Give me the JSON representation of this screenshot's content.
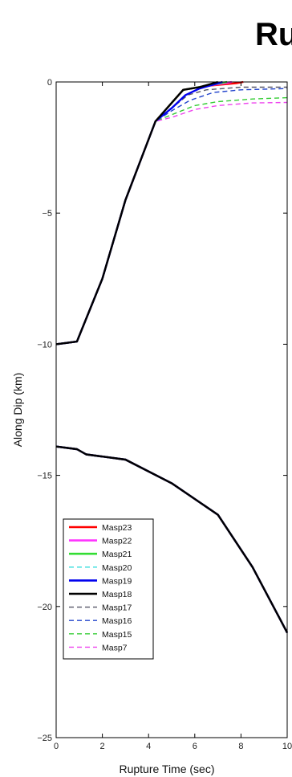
{
  "chart_data": {
    "type": "line",
    "title": "Ru",
    "xlabel": "Rupture Time (sec)",
    "ylabel": "Along Dip (km)",
    "xlim": [
      0,
      10
    ],
    "ylim": [
      -25,
      0
    ],
    "xticks": [
      0,
      2,
      4,
      6,
      8,
      10
    ],
    "xtick_labels": [
      "0",
      "2",
      "4",
      "6",
      "8",
      "10"
    ],
    "yticks": [
      0,
      -5,
      -10,
      -15,
      -20,
      -25
    ],
    "ytick_labels": [
      "0",
      "−5",
      "−10",
      "−15",
      "−20",
      "−25"
    ],
    "grid": false,
    "legend_position": "bottom-left",
    "series": [
      {
        "name": "Masp23",
        "color": "#ff0000",
        "style": "solid",
        "upper": [
          [
            0,
            -10
          ],
          [
            0.9,
            -9.9
          ],
          [
            2,
            -7.5
          ],
          [
            3,
            -4.5
          ],
          [
            4.3,
            -1.5
          ],
          [
            5,
            -0.8
          ],
          [
            5.5,
            -0.3
          ],
          [
            6.5,
            -0.15
          ],
          [
            7.8,
            -0.05
          ],
          [
            8.1,
            0
          ]
        ],
        "lower": [
          [
            0,
            -13.9
          ],
          [
            0.9,
            -14
          ],
          [
            1.3,
            -14.2
          ],
          [
            3,
            -14.4
          ],
          [
            5,
            -15.3
          ],
          [
            7,
            -16.5
          ],
          [
            8.5,
            -18.5
          ],
          [
            9.7,
            -20.5
          ],
          [
            10,
            -21
          ]
        ]
      },
      {
        "name": "Masp22",
        "color": "#ff33ff",
        "style": "solid",
        "upper": [
          [
            0,
            -10
          ],
          [
            0.9,
            -9.9
          ],
          [
            2,
            -7.5
          ],
          [
            3,
            -4.5
          ],
          [
            4.3,
            -1.5
          ],
          [
            5,
            -0.8
          ],
          [
            5.5,
            -0.3
          ],
          [
            6.5,
            -0.15
          ],
          [
            7.3,
            -0.05
          ],
          [
            7.6,
            0
          ]
        ],
        "lower": [
          [
            0,
            -13.9
          ],
          [
            0.9,
            -14
          ],
          [
            1.3,
            -14.2
          ],
          [
            3,
            -14.4
          ],
          [
            5,
            -15.3
          ],
          [
            7,
            -16.5
          ],
          [
            8.5,
            -18.5
          ],
          [
            9.7,
            -20.5
          ],
          [
            10,
            -21
          ]
        ]
      },
      {
        "name": "Masp21",
        "color": "#33dd33",
        "style": "solid",
        "upper": [
          [
            0,
            -10
          ],
          [
            0.9,
            -9.9
          ],
          [
            2,
            -7.5
          ],
          [
            3,
            -4.5
          ],
          [
            4.3,
            -1.5
          ],
          [
            5,
            -0.8
          ],
          [
            5.5,
            -0.3
          ],
          [
            6.5,
            -0.15
          ],
          [
            7.1,
            -0.05
          ],
          [
            7.4,
            0
          ]
        ],
        "lower": [
          [
            0,
            -13.9
          ],
          [
            0.9,
            -14
          ],
          [
            1.3,
            -14.2
          ],
          [
            3,
            -14.4
          ],
          [
            5,
            -15.3
          ],
          [
            7,
            -16.5
          ],
          [
            8.5,
            -18.5
          ],
          [
            9.7,
            -20.5
          ],
          [
            10,
            -21
          ]
        ]
      },
      {
        "name": "Masp20",
        "color": "#33dddd",
        "style": "dashed",
        "upper": [
          [
            0,
            -10
          ],
          [
            0.9,
            -9.9
          ],
          [
            2,
            -7.5
          ],
          [
            3,
            -4.5
          ],
          [
            4.3,
            -1.5
          ],
          [
            5,
            -0.8
          ],
          [
            5.5,
            -0.3
          ],
          [
            6.5,
            -0.15
          ],
          [
            7,
            -0.05
          ],
          [
            7.2,
            0
          ]
        ],
        "lower": [
          [
            0,
            -13.9
          ],
          [
            0.9,
            -14
          ],
          [
            1.3,
            -14.2
          ],
          [
            3,
            -14.4
          ],
          [
            5,
            -15.3
          ],
          [
            7,
            -16.5
          ],
          [
            8.5,
            -18.5
          ],
          [
            9.7,
            -20.5
          ],
          [
            10,
            -21
          ]
        ]
      },
      {
        "name": "Masp19",
        "color": "#0000ee",
        "style": "solid",
        "upper": [
          [
            0,
            -10
          ],
          [
            0.9,
            -9.9
          ],
          [
            2,
            -7.5
          ],
          [
            3,
            -4.5
          ],
          [
            4.3,
            -1.5
          ],
          [
            5,
            -1.0
          ],
          [
            5.6,
            -0.5
          ],
          [
            6.2,
            -0.25
          ],
          [
            6.8,
            -0.1
          ],
          [
            7.2,
            0
          ]
        ],
        "lower": [
          [
            0,
            -13.9
          ],
          [
            0.9,
            -14
          ],
          [
            1.3,
            -14.2
          ],
          [
            3,
            -14.4
          ],
          [
            5,
            -15.3
          ],
          [
            7,
            -16.5
          ],
          [
            8.5,
            -18.5
          ],
          [
            9.7,
            -20.5
          ],
          [
            10,
            -21
          ]
        ]
      },
      {
        "name": "Masp18",
        "color": "#000000",
        "style": "solid",
        "upper": [
          [
            0,
            -10
          ],
          [
            0.9,
            -9.9
          ],
          [
            2,
            -7.5
          ],
          [
            3,
            -4.5
          ],
          [
            4.3,
            -1.5
          ],
          [
            5,
            -0.8
          ],
          [
            5.5,
            -0.3
          ],
          [
            6.2,
            -0.2
          ],
          [
            6.8,
            -0.05
          ],
          [
            7,
            0
          ]
        ],
        "lower": [
          [
            0,
            -13.9
          ],
          [
            0.9,
            -14
          ],
          [
            1.3,
            -14.2
          ],
          [
            3,
            -14.4
          ],
          [
            5,
            -15.3
          ],
          [
            7,
            -16.5
          ],
          [
            8.5,
            -18.5
          ],
          [
            9.7,
            -20.5
          ],
          [
            10,
            -21
          ]
        ]
      },
      {
        "name": "Masp17",
        "color": "#555566",
        "style": "dashed",
        "upper": [
          [
            0,
            -10
          ],
          [
            0.9,
            -9.9
          ],
          [
            2,
            -7.5
          ],
          [
            3,
            -4.5
          ],
          [
            4.3,
            -1.5
          ],
          [
            5,
            -1.0
          ],
          [
            5.7,
            -0.5
          ],
          [
            6.5,
            -0.3
          ],
          [
            8,
            -0.2
          ],
          [
            10,
            -0.2
          ]
        ],
        "lower": [
          [
            0,
            -13.9
          ],
          [
            0.9,
            -14
          ],
          [
            1.3,
            -14.2
          ],
          [
            3,
            -14.4
          ],
          [
            5,
            -15.3
          ],
          [
            7,
            -16.5
          ],
          [
            8.5,
            -18.5
          ],
          [
            9.7,
            -20.5
          ],
          [
            10,
            -21
          ]
        ]
      },
      {
        "name": "Masp16",
        "color": "#2244cc",
        "style": "dashed",
        "upper": [
          [
            0,
            -10
          ],
          [
            0.9,
            -9.9
          ],
          [
            2,
            -7.5
          ],
          [
            3,
            -4.5
          ],
          [
            4.3,
            -1.5
          ],
          [
            5,
            -1.1
          ],
          [
            5.8,
            -0.7
          ],
          [
            6.8,
            -0.4
          ],
          [
            8,
            -0.3
          ],
          [
            10,
            -0.25
          ]
        ],
        "lower": [
          [
            0,
            -13.9
          ],
          [
            0.9,
            -14
          ],
          [
            1.3,
            -14.2
          ],
          [
            3,
            -14.4
          ],
          [
            5,
            -15.3
          ],
          [
            7,
            -16.5
          ],
          [
            8.5,
            -18.5
          ],
          [
            9.7,
            -20.5
          ],
          [
            10,
            -21
          ]
        ]
      },
      {
        "name": "Masp15",
        "color": "#33cc33",
        "style": "dashed",
        "upper": [
          [
            0,
            -10
          ],
          [
            0.9,
            -9.9
          ],
          [
            2,
            -7.5
          ],
          [
            3,
            -4.5
          ],
          [
            4.3,
            -1.5
          ],
          [
            5,
            -1.25
          ],
          [
            6,
            -0.9
          ],
          [
            7,
            -0.75
          ],
          [
            8.5,
            -0.65
          ],
          [
            10,
            -0.6
          ]
        ],
        "lower": [
          [
            0,
            -13.9
          ],
          [
            0.9,
            -14
          ],
          [
            1.3,
            -14.2
          ],
          [
            3,
            -14.4
          ],
          [
            5,
            -15.3
          ],
          [
            7,
            -16.5
          ],
          [
            8.5,
            -18.5
          ],
          [
            9.7,
            -20.5
          ],
          [
            10,
            -21
          ]
        ]
      },
      {
        "name": "Masp7",
        "color": "#ee44ee",
        "style": "dashed",
        "upper": [
          [
            0,
            -10
          ],
          [
            0.9,
            -9.9
          ],
          [
            2,
            -7.5
          ],
          [
            3,
            -4.5
          ],
          [
            4.3,
            -1.5
          ],
          [
            5,
            -1.35
          ],
          [
            6,
            -1.05
          ],
          [
            7,
            -0.9
          ],
          [
            8.5,
            -0.8
          ],
          [
            10,
            -0.78
          ]
        ],
        "lower": [
          [
            0,
            -13.9
          ],
          [
            0.9,
            -14
          ],
          [
            1.3,
            -14.2
          ],
          [
            3,
            -14.4
          ],
          [
            5,
            -15.3
          ],
          [
            7,
            -16.5
          ],
          [
            8.5,
            -18.5
          ],
          [
            9.7,
            -20.5
          ],
          [
            10,
            -21
          ]
        ]
      }
    ]
  }
}
